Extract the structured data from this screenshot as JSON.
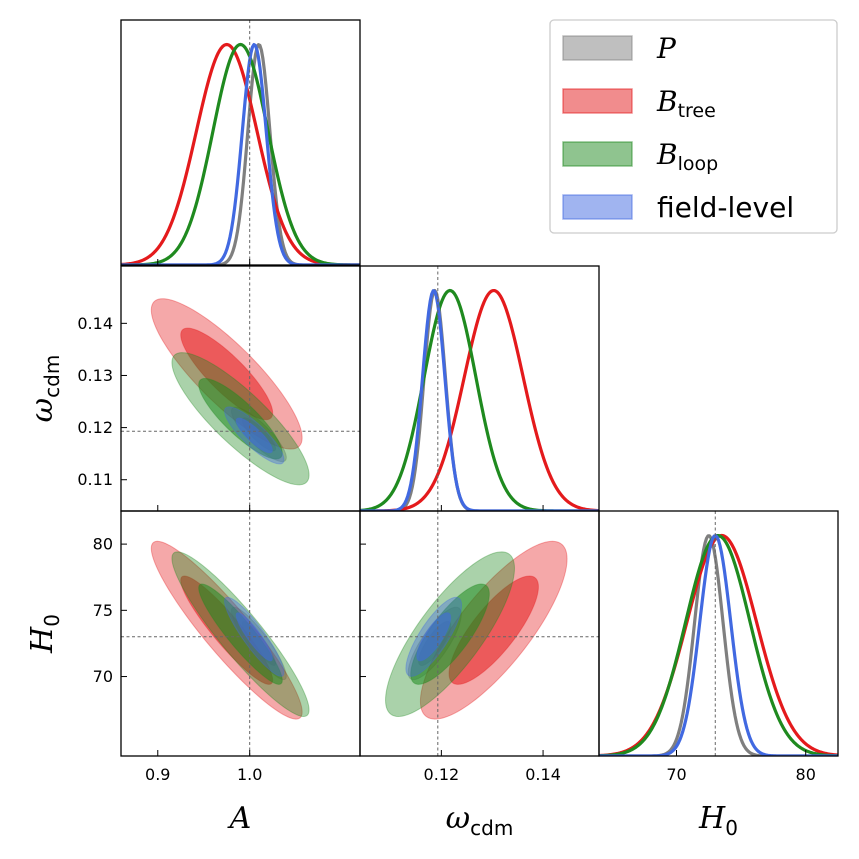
{
  "chart_data": {
    "type": "corner",
    "parameters": [
      {
        "id": "A",
        "symbol": "A",
        "subscript": "",
        "range": [
          0.86,
          1.12
        ],
        "ticks": [
          0.9,
          1.0
        ],
        "tick_labels": [
          "0.9",
          "1.0"
        ],
        "truth": 1.0
      },
      {
        "id": "omega_cdm",
        "symbol": "ω",
        "subscript": "cdm",
        "range": [
          0.104,
          0.151
        ],
        "ticks": [
          0.11,
          0.12,
          0.13,
          0.14
        ],
        "tick_labels": [
          "0.110",
          "0.120",
          "0.130",
          "0.140"
        ],
        "x_ticks": [
          0.12,
          0.14
        ],
        "x_tick_labels": [
          "0.12",
          "0.14"
        ],
        "y_tick_labels": [
          "0.11",
          "0.12",
          "0.13",
          "0.14"
        ],
        "truth": 0.1193
      },
      {
        "id": "H0",
        "symbol": "H",
        "subscript": "0",
        "range": [
          64.0,
          82.5
        ],
        "ticks": [
          70,
          75,
          80
        ],
        "tick_labels": [
          "70",
          "75",
          "80"
        ],
        "x_ticks": [
          70,
          80
        ],
        "x_tick_labels": [
          "70",
          "80"
        ],
        "truth": 73.0
      }
    ],
    "series": [
      {
        "name": "P",
        "legend_italic": "P",
        "legend_sub": "",
        "color": "#7f7f7f",
        "mean": [
          1.01,
          0.1187,
          72.5
        ],
        "sigma": [
          0.012,
          0.0021,
          1.1
        ],
        "pair_corr": {
          "omega_cdm|A": -0.85,
          "H0|A": -0.9,
          "H0|omega_cdm": 0.8
        }
      },
      {
        "name": "B_tree",
        "legend_italic": "B",
        "legend_sub": "tree",
        "color": "#e41a1c",
        "mean": [
          0.975,
          0.1303,
          73.5
        ],
        "sigma": [
          0.033,
          0.0058,
          2.7
        ],
        "pair_corr": {
          "omega_cdm|A": -0.85,
          "H0|A": -0.92,
          "H0|omega_cdm": 0.8
        }
      },
      {
        "name": "B_loop",
        "legend_italic": "B",
        "legend_sub": "loop",
        "color": "#1f8a1f",
        "mean": [
          0.99,
          0.1217,
          73.2
        ],
        "sigma": [
          0.03,
          0.0051,
          2.5
        ],
        "pair_corr": {
          "omega_cdm|A": -0.85,
          "H0|A": -0.92,
          "H0|omega_cdm": 0.8
        }
      },
      {
        "name": "field-level",
        "legend_italic": "",
        "legend_sub": "",
        "legend_text": "field-level",
        "color": "#4169e1",
        "mean": [
          1.005,
          0.1185,
          73.0
        ],
        "sigma": [
          0.013,
          0.0022,
          1.2
        ],
        "pair_corr": {
          "omega_cdm|A": -0.85,
          "H0|A": -0.9,
          "H0|omega_cdm": 0.8
        }
      }
    ],
    "legend_position": "top-right",
    "reference_lines": "dashed grey at true parameter values",
    "grid": false
  }
}
